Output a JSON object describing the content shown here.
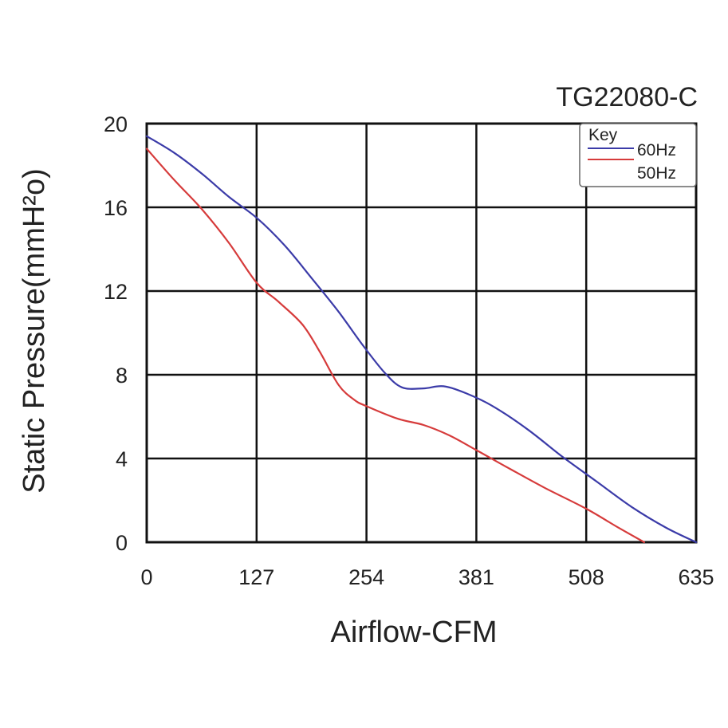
{
  "chart_data": {
    "type": "line",
    "title": "TG22080-C",
    "xlabel": "Airflow-CFM",
    "ylabel": "Static Pressure(mmH²o)",
    "xlim": [
      0,
      635
    ],
    "ylim": [
      0,
      20
    ],
    "x_ticks": [
      0,
      127,
      254,
      381,
      508,
      635
    ],
    "y_ticks": [
      0,
      4,
      8,
      12,
      16,
      20
    ],
    "x_tick_labels": [
      "0",
      "127",
      "254",
      "381",
      "508",
      "635"
    ],
    "y_tick_labels": [
      "0",
      "4",
      "8",
      "12",
      "16",
      "20"
    ],
    "grid": true,
    "legend": {
      "title": "Key",
      "position": "top-right"
    },
    "series": [
      {
        "name": "60Hz",
        "color": "#3b3ba8",
        "points": [
          [
            0,
            19.4
          ],
          [
            32,
            18.6
          ],
          [
            64,
            17.6
          ],
          [
            95,
            16.5
          ],
          [
            127,
            15.5
          ],
          [
            159,
            14.2
          ],
          [
            191,
            12.6
          ],
          [
            222,
            11.0
          ],
          [
            250,
            9.4
          ],
          [
            275,
            8.1
          ],
          [
            295,
            7.4
          ],
          [
            320,
            7.35
          ],
          [
            343,
            7.45
          ],
          [
            370,
            7.1
          ],
          [
            400,
            6.5
          ],
          [
            440,
            5.4
          ],
          [
            480,
            4.1
          ],
          [
            520,
            2.9
          ],
          [
            560,
            1.7
          ],
          [
            600,
            0.7
          ],
          [
            635,
            0.0
          ]
        ]
      },
      {
        "name": "50Hz",
        "color": "#d63b3b",
        "points": [
          [
            0,
            18.8
          ],
          [
            32,
            17.3
          ],
          [
            64,
            15.9
          ],
          [
            95,
            14.3
          ],
          [
            127,
            12.4
          ],
          [
            152,
            11.5
          ],
          [
            180,
            10.4
          ],
          [
            200,
            9.1
          ],
          [
            222,
            7.5
          ],
          [
            240,
            6.8
          ],
          [
            254,
            6.5
          ],
          [
            290,
            5.9
          ],
          [
            320,
            5.6
          ],
          [
            350,
            5.1
          ],
          [
            381,
            4.4
          ],
          [
            420,
            3.5
          ],
          [
            460,
            2.6
          ],
          [
            508,
            1.6
          ],
          [
            545,
            0.7
          ],
          [
            575,
            0.0
          ]
        ]
      }
    ]
  }
}
